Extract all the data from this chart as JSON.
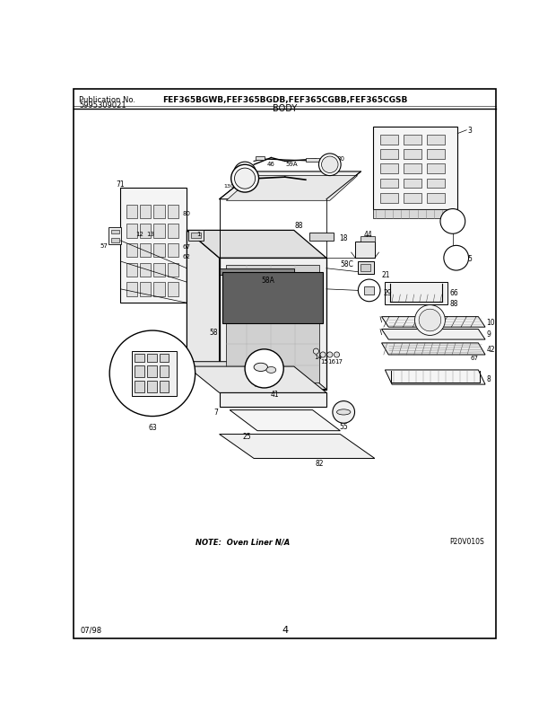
{
  "pub_no_label": "Publication No.",
  "pub_no_value": "5995309021",
  "model_numbers": "FEF365BGWB,FEF365BGDB,FEF365CGBB,FEF365CGSB",
  "section_title": "BODY",
  "date_code": "07/98",
  "page_number": "4",
  "note_text": "NOTE:  Oven Liner N/A",
  "page_code": "P20V010S",
  "bg_color": "#ffffff",
  "text_color": "#000000",
  "fig_width": 6.2,
  "fig_height": 8.04,
  "dpi": 100,
  "diagram_image_path": null
}
